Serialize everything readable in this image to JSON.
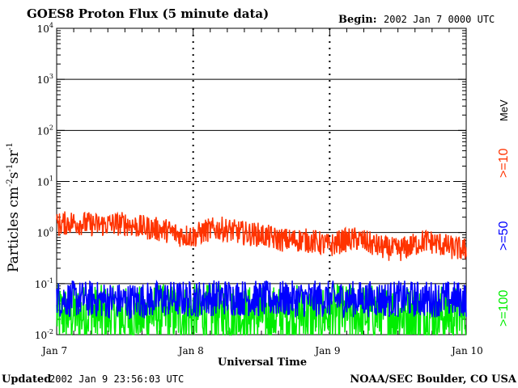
{
  "chart_data": {
    "type": "line",
    "title": "GOES8 Proton Flux (5 minute data)",
    "begin_label": "Begin:",
    "begin_value": "2002 Jan 7 0000 UTC",
    "xlabel": "Universal Time",
    "ylabel_main": "Particles cm",
    "ylabel_sup1": "-2",
    "ylabel_s": "s",
    "ylabel_sup2": "-1",
    "ylabel_sr": "sr",
    "ylabel_sup3": "-1",
    "y_scale": "log",
    "ylim": [
      0.01,
      10000
    ],
    "xlim_days": [
      0,
      3
    ],
    "x_tick_labels": [
      "Jan 7",
      "Jan 8",
      "Jan 9",
      "Jan 10"
    ],
    "y_tick_labels": [
      {
        "base": "10",
        "exp": "-2"
      },
      {
        "base": "10",
        "exp": "-1"
      },
      {
        "base": "10",
        "exp": "0"
      },
      {
        "base": "10",
        "exp": "1"
      },
      {
        "base": "10",
        "exp": "2"
      },
      {
        "base": "10",
        "exp": "3"
      },
      {
        "base": "10",
        "exp": "4"
      }
    ],
    "threshold_lines": [
      {
        "value": 1000,
        "style": "solid"
      },
      {
        "value": 100,
        "style": "solid"
      },
      {
        "value": 10,
        "style": "dashed"
      },
      {
        "value": 1,
        "style": "solid"
      },
      {
        "value": 0.1,
        "style": "solid"
      }
    ],
    "series": [
      {
        "name": ">=10",
        "color": "#ff3300",
        "x": [
          0,
          0.1,
          0.2,
          0.3,
          0.4,
          0.5,
          0.6,
          0.7,
          0.8,
          0.9,
          1.0,
          1.1,
          1.2,
          1.3,
          1.4,
          1.5,
          1.6,
          1.7,
          1.8,
          1.9,
          2.0,
          2.1,
          2.2,
          2.3,
          2.4,
          2.5,
          2.6,
          2.7,
          2.8,
          2.9,
          3.0
        ],
        "values": [
          1.4,
          1.6,
          1.5,
          1.4,
          1.45,
          1.5,
          1.3,
          1.2,
          1.1,
          0.9,
          0.85,
          1.1,
          1.2,
          1.05,
          0.95,
          0.9,
          0.75,
          0.7,
          0.72,
          0.65,
          0.55,
          0.7,
          0.75,
          0.6,
          0.5,
          0.45,
          0.55,
          0.7,
          0.6,
          0.5,
          0.45
        ],
        "noise": 0.08
      },
      {
        "name": ">=50",
        "color": "#0000ff",
        "x": [
          0,
          0.25,
          0.5,
          0.75,
          1.0,
          1.25,
          1.5,
          1.75,
          2.0,
          2.25,
          2.5,
          2.75,
          3.0
        ],
        "values": [
          0.05,
          0.05,
          0.045,
          0.05,
          0.05,
          0.055,
          0.05,
          0.05,
          0.05,
          0.05,
          0.05,
          0.05,
          0.05
        ],
        "noise": 0.12
      },
      {
        "name": ">=100",
        "color": "#00ee00",
        "x": [
          0,
          0.25,
          0.5,
          0.75,
          1.0,
          1.25,
          1.5,
          1.75,
          2.0,
          2.25,
          2.5,
          2.75,
          3.0
        ],
        "values": [
          0.025,
          0.025,
          0.022,
          0.025,
          0.025,
          0.025,
          0.023,
          0.025,
          0.025,
          0.025,
          0.025,
          0.025,
          0.025
        ],
        "noise": 0.2
      }
    ],
    "energy_unit": "MeV",
    "updated_label": "Updated",
    "updated_value": "2002 Jan  9 23:56:03 UTC",
    "credit": "NOAA/SEC Boulder, CO USA"
  }
}
